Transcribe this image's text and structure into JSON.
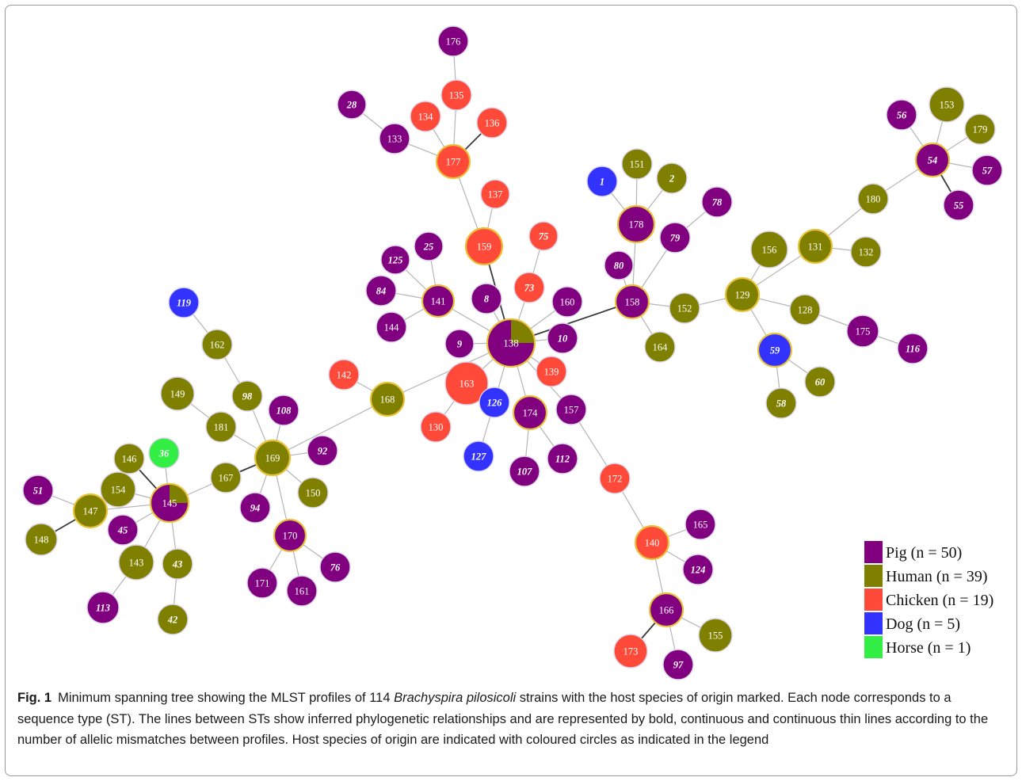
{
  "legend": [
    {
      "key": "pig",
      "label": "Pig (n = 50)",
      "color": "#800080"
    },
    {
      "key": "human",
      "label": "Human (n = 39)",
      "color": "#808000"
    },
    {
      "key": "chicken",
      "label": "Chicken (n = 19)",
      "color": "#ff4a3a"
    },
    {
      "key": "dog",
      "label": "Dog (n = 5)",
      "color": "#3333ff"
    },
    {
      "key": "horse",
      "label": "Horse (n = 1)",
      "color": "#33ee44"
    }
  ],
  "caption": {
    "fig_label": "Fig. 1",
    "text_before": "Minimum spanning tree showing the MLST profiles of 114 ",
    "species": "Brachyspira pilosicoli",
    "text_after": " strains with the host species of origin marked. Each node corresponds to a sequence type (ST). The lines between STs show inferred phylogenetic relationships and are represented by bold, continuous and continuous thin lines according to the number of allelic mismatches between profiles. Host species of origin are indicated with coloured circles as indicated in the legend"
  },
  "nodes": [
    {
      "id": "176",
      "host": "pig"
    },
    {
      "id": "135",
      "host": "chicken"
    },
    {
      "id": "28",
      "host": "pig",
      "italic": true
    },
    {
      "id": "134",
      "host": "chicken"
    },
    {
      "id": "136",
      "host": "chicken"
    },
    {
      "id": "133",
      "host": "pig"
    },
    {
      "id": "177",
      "host": "chicken",
      "ring": true
    },
    {
      "id": "137",
      "host": "chicken"
    },
    {
      "id": "159",
      "host": "chicken",
      "ring": true
    },
    {
      "id": "75",
      "host": "chicken",
      "italic": true
    },
    {
      "id": "73",
      "host": "chicken",
      "italic": true
    },
    {
      "id": "1",
      "host": "dog",
      "italic": true
    },
    {
      "id": "151",
      "host": "human"
    },
    {
      "id": "2",
      "host": "human",
      "italic": true
    },
    {
      "id": "178",
      "host": "pig",
      "ring": true
    },
    {
      "id": "78",
      "host": "pig",
      "italic": true
    },
    {
      "id": "79",
      "host": "pig",
      "italic": true
    },
    {
      "id": "80",
      "host": "pig",
      "italic": true
    },
    {
      "id": "158",
      "host": "pig",
      "ring": true
    },
    {
      "id": "152",
      "host": "human"
    },
    {
      "id": "164",
      "host": "human"
    },
    {
      "id": "25",
      "host": "pig",
      "italic": true
    },
    {
      "id": "125",
      "host": "pig",
      "italic": true
    },
    {
      "id": "84",
      "host": "pig",
      "italic": true
    },
    {
      "id": "141",
      "host": "pig",
      "ring": true
    },
    {
      "id": "144",
      "host": "pig"
    },
    {
      "id": "8",
      "host": "pig",
      "italic": true
    },
    {
      "id": "160",
      "host": "pig"
    },
    {
      "id": "138",
      "host": "pig",
      "pie": "human",
      "ring": true
    },
    {
      "id": "9",
      "host": "pig",
      "italic": true
    },
    {
      "id": "10",
      "host": "pig",
      "italic": true
    },
    {
      "id": "139",
      "host": "chicken"
    },
    {
      "id": "163",
      "host": "chicken"
    },
    {
      "id": "126",
      "host": "dog",
      "italic": true
    },
    {
      "id": "174",
      "host": "pig",
      "ring": true
    },
    {
      "id": "157",
      "host": "pig"
    },
    {
      "id": "130",
      "host": "chicken"
    },
    {
      "id": "127",
      "host": "dog",
      "italic": true
    },
    {
      "id": "107",
      "host": "pig",
      "italic": true
    },
    {
      "id": "112",
      "host": "pig",
      "italic": true
    },
    {
      "id": "172",
      "host": "chicken"
    },
    {
      "id": "140",
      "host": "chicken",
      "ring": true
    },
    {
      "id": "165",
      "host": "pig"
    },
    {
      "id": "124",
      "host": "pig",
      "italic": true
    },
    {
      "id": "166",
      "host": "pig",
      "ring": true
    },
    {
      "id": "155",
      "host": "human"
    },
    {
      "id": "173",
      "host": "chicken"
    },
    {
      "id": "97",
      "host": "pig",
      "italic": true
    },
    {
      "id": "142",
      "host": "chicken"
    },
    {
      "id": "168",
      "host": "human",
      "ring": true
    },
    {
      "id": "119",
      "host": "dog",
      "italic": true
    },
    {
      "id": "162",
      "host": "human"
    },
    {
      "id": "149",
      "host": "human"
    },
    {
      "id": "98",
      "host": "human",
      "italic": true
    },
    {
      "id": "108",
      "host": "pig",
      "italic": true
    },
    {
      "id": "181",
      "host": "human"
    },
    {
      "id": "169",
      "host": "human",
      "ring": true
    },
    {
      "id": "92",
      "host": "pig",
      "italic": true
    },
    {
      "id": "167",
      "host": "human"
    },
    {
      "id": "150",
      "host": "human"
    },
    {
      "id": "94",
      "host": "pig",
      "italic": true
    },
    {
      "id": "170",
      "host": "pig",
      "ring": true
    },
    {
      "id": "76",
      "host": "pig",
      "italic": true
    },
    {
      "id": "171",
      "host": "pig"
    },
    {
      "id": "161",
      "host": "pig"
    },
    {
      "id": "36",
      "host": "horse",
      "italic": true
    },
    {
      "id": "146",
      "host": "human"
    },
    {
      "id": "154",
      "host": "human"
    },
    {
      "id": "145",
      "host": "pig",
      "pie": "human",
      "ring": true
    },
    {
      "id": "147",
      "host": "human",
      "ring": true
    },
    {
      "id": "51",
      "host": "pig",
      "italic": true
    },
    {
      "id": "148",
      "host": "human"
    },
    {
      "id": "45",
      "host": "pig",
      "italic": true
    },
    {
      "id": "143",
      "host": "human"
    },
    {
      "id": "43",
      "host": "human",
      "italic": true
    },
    {
      "id": "113",
      "host": "pig",
      "italic": true
    },
    {
      "id": "42",
      "host": "human",
      "italic": true
    },
    {
      "id": "56",
      "host": "pig",
      "italic": true
    },
    {
      "id": "153",
      "host": "human"
    },
    {
      "id": "179",
      "host": "human"
    },
    {
      "id": "54",
      "host": "pig",
      "italic": true,
      "ring": true
    },
    {
      "id": "57",
      "host": "pig",
      "italic": true
    },
    {
      "id": "55",
      "host": "pig",
      "italic": true
    },
    {
      "id": "180",
      "host": "human"
    },
    {
      "id": "131",
      "host": "human",
      "ring": true
    },
    {
      "id": "132",
      "host": "human"
    },
    {
      "id": "156",
      "host": "human"
    },
    {
      "id": "129",
      "host": "human",
      "ring": true
    },
    {
      "id": "128",
      "host": "human"
    },
    {
      "id": "175",
      "host": "pig"
    },
    {
      "id": "116",
      "host": "pig",
      "italic": true
    },
    {
      "id": "59",
      "host": "dog",
      "italic": true,
      "ring": true
    },
    {
      "id": "60",
      "host": "human",
      "italic": true
    },
    {
      "id": "58",
      "host": "human",
      "italic": true
    }
  ]
}
